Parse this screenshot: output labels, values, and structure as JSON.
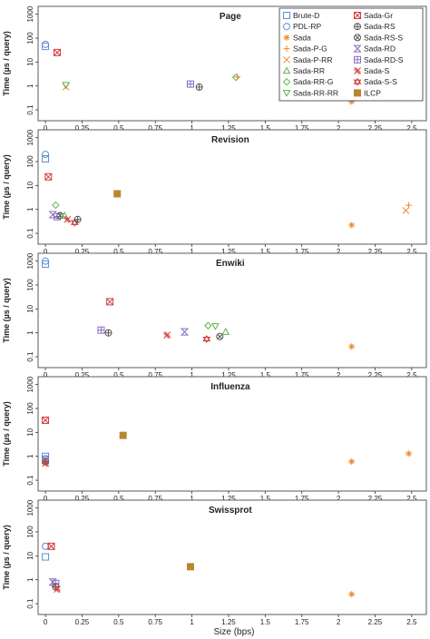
{
  "figure": {
    "x_label": "Size (bps)",
    "y_label": "Time (µs / query)",
    "x_ticks": [
      "0",
      "0.25",
      "0.5",
      "0.75",
      "1",
      "1.25",
      "1.5",
      "1.75",
      "2",
      "2.25",
      "2.5"
    ],
    "y_ticks": [
      "0.1",
      "1",
      "10",
      "100",
      "1000"
    ]
  },
  "colors": {
    "blue": "#5b8fd0",
    "orange": "#f08a2c",
    "green": "#5fb24a",
    "red": "#d63a3a",
    "purple": "#8a6cc0",
    "gray": "#555555",
    "brown": "#b8862e"
  },
  "legend": [
    {
      "name": "Brute-D",
      "marker": "square",
      "color": "blue"
    },
    {
      "name": "Sada-Gr",
      "marker": "boxx",
      "color": "red"
    },
    {
      "name": "PDL-RP",
      "marker": "circle",
      "color": "blue"
    },
    {
      "name": "Sada-RS",
      "marker": "circleplus",
      "color": "gray"
    },
    {
      "name": "Sada",
      "marker": "star",
      "color": "orange"
    },
    {
      "name": "Sada-RS-S",
      "marker": "circlecross",
      "color": "gray"
    },
    {
      "name": "Sada-P-G",
      "marker": "plus",
      "color": "orange"
    },
    {
      "name": "Sada-RD",
      "marker": "hourglass",
      "color": "purple"
    },
    {
      "name": "Sada-P-RR",
      "marker": "cross",
      "color": "orange"
    },
    {
      "name": "Sada-RD-S",
      "marker": "boxplus",
      "color": "purple"
    },
    {
      "name": "Sada-RR",
      "marker": "triup",
      "color": "green"
    },
    {
      "name": "Sada-S",
      "marker": "xx",
      "color": "red"
    },
    {
      "name": "Sada-RR-G",
      "marker": "diamond",
      "color": "green"
    },
    {
      "name": "Sada-S-S",
      "marker": "stardavid",
      "color": "red"
    },
    {
      "name": "Sada-RR-RR",
      "marker": "tridown",
      "color": "green"
    },
    {
      "name": "ILCP",
      "marker": "filledsquare",
      "color": "brown"
    }
  ],
  "chart_data": [
    {
      "type": "scatter",
      "title": "Page",
      "xlim": [
        -0.05,
        2.6
      ],
      "ylim": [
        0.05,
        1500
      ],
      "yscale": "log",
      "points": [
        {
          "series": "Brute-D",
          "x": 0.0,
          "y": 45
        },
        {
          "series": "PDL-RP",
          "x": 0.0,
          "y": 55
        },
        {
          "series": "Sada-Gr",
          "x": 0.08,
          "y": 25
        },
        {
          "series": "Sada-P-RR",
          "x": 0.14,
          "y": 0.9
        },
        {
          "series": "Sada-RR-RR",
          "x": 0.14,
          "y": 1.1
        },
        {
          "series": "Sada-RD-S",
          "x": 0.99,
          "y": 1.2
        },
        {
          "series": "Sada-RS",
          "x": 1.05,
          "y": 0.9
        },
        {
          "series": "Sada-RR-G",
          "x": 1.3,
          "y": 2.3
        },
        {
          "series": "Sada-P-G",
          "x": 1.31,
          "y": 2.4
        },
        {
          "series": "Sada",
          "x": 2.09,
          "y": 0.22
        }
      ]
    },
    {
      "type": "scatter",
      "title": "Revision",
      "xlim": [
        -0.05,
        2.6
      ],
      "ylim": [
        0.05,
        1500
      ],
      "yscale": "log",
      "points": [
        {
          "series": "PDL-RP",
          "x": 0.0,
          "y": 200
        },
        {
          "series": "Brute-D",
          "x": 0.0,
          "y": 130
        },
        {
          "series": "Sada-Gr",
          "x": 0.02,
          "y": 23
        },
        {
          "series": "Sada-RR-G",
          "x": 0.07,
          "y": 1.5
        },
        {
          "series": "Sada-RD",
          "x": 0.05,
          "y": 0.6
        },
        {
          "series": "Sada-RD-S",
          "x": 0.08,
          "y": 0.5
        },
        {
          "series": "Sada-RS-S",
          "x": 0.1,
          "y": 0.55
        },
        {
          "series": "Sada-RR",
          "x": 0.13,
          "y": 0.55
        },
        {
          "series": "Sada-S",
          "x": 0.15,
          "y": 0.38
        },
        {
          "series": "Sada-S-S",
          "x": 0.2,
          "y": 0.28
        },
        {
          "series": "Sada-RS",
          "x": 0.22,
          "y": 0.38
        },
        {
          "series": "ILCP",
          "x": 0.49,
          "y": 4.5
        },
        {
          "series": "Sada",
          "x": 2.09,
          "y": 0.22
        },
        {
          "series": "Sada-P-G",
          "x": 2.48,
          "y": 1.5
        },
        {
          "series": "Sada-P-RR",
          "x": 2.46,
          "y": 0.9
        }
      ]
    },
    {
      "type": "scatter",
      "title": "Enwiki",
      "xlim": [
        -0.05,
        2.6
      ],
      "ylim": [
        0.05,
        1500
      ],
      "yscale": "log",
      "points": [
        {
          "series": "PDL-RP",
          "x": 0.0,
          "y": 1000
        },
        {
          "series": "Brute-D",
          "x": 0.0,
          "y": 750
        },
        {
          "series": "Sada-Gr",
          "x": 0.44,
          "y": 20
        },
        {
          "series": "Sada-RD-S",
          "x": 0.38,
          "y": 1.3
        },
        {
          "series": "Sada-RS",
          "x": 0.43,
          "y": 1.0
        },
        {
          "series": "Sada-S",
          "x": 0.83,
          "y": 0.8
        },
        {
          "series": "Sada-RD",
          "x": 0.95,
          "y": 1.1
        },
        {
          "series": "Sada-S-S",
          "x": 1.1,
          "y": 0.55
        },
        {
          "series": "Sada-RR-G",
          "x": 1.11,
          "y": 2.0
        },
        {
          "series": "Sada-RR-RR",
          "x": 1.16,
          "y": 1.9
        },
        {
          "series": "Sada-RS-S",
          "x": 1.19,
          "y": 0.7
        },
        {
          "series": "Sada-RR",
          "x": 1.23,
          "y": 1.1
        },
        {
          "series": "Sada",
          "x": 2.09,
          "y": 0.27
        }
      ]
    },
    {
      "type": "scatter",
      "title": "Influenza",
      "xlim": [
        -0.05,
        2.6
      ],
      "ylim": [
        0.05,
        1500
      ],
      "yscale": "log",
      "points": [
        {
          "series": "Sada-Gr",
          "x": 0.0,
          "y": 32
        },
        {
          "series": "Brute-D",
          "x": 0.0,
          "y": 1.0
        },
        {
          "series": "PDL-RP",
          "x": 0.0,
          "y": 0.8
        },
        {
          "series": "Sada-RD",
          "x": 0.0,
          "y": 0.7
        },
        {
          "series": "Sada-RS",
          "x": 0.0,
          "y": 0.6
        },
        {
          "series": "Sada-S",
          "x": 0.0,
          "y": 0.5
        },
        {
          "series": "ILCP",
          "x": 0.53,
          "y": 7.5
        },
        {
          "series": "Sada",
          "x": 2.09,
          "y": 0.6
        },
        {
          "series": "Sada",
          "x": 2.48,
          "y": 1.3
        }
      ]
    },
    {
      "type": "scatter",
      "title": "Swissprot",
      "xlim": [
        -0.05,
        2.6
      ],
      "ylim": [
        0.05,
        1500
      ],
      "yscale": "log",
      "points": [
        {
          "series": "PDL-RP",
          "x": 0.0,
          "y": 25
        },
        {
          "series": "Sada-Gr",
          "x": 0.04,
          "y": 25
        },
        {
          "series": "Brute-D",
          "x": 0.0,
          "y": 9
        },
        {
          "series": "Sada-RD",
          "x": 0.05,
          "y": 0.8
        },
        {
          "series": "Sada-RD-S",
          "x": 0.07,
          "y": 0.7
        },
        {
          "series": "Sada-RS",
          "x": 0.07,
          "y": 0.5
        },
        {
          "series": "Sada-S",
          "x": 0.08,
          "y": 0.4
        },
        {
          "series": "ILCP",
          "x": 0.99,
          "y": 3.5
        },
        {
          "series": "Sada",
          "x": 2.09,
          "y": 0.25
        }
      ]
    }
  ]
}
